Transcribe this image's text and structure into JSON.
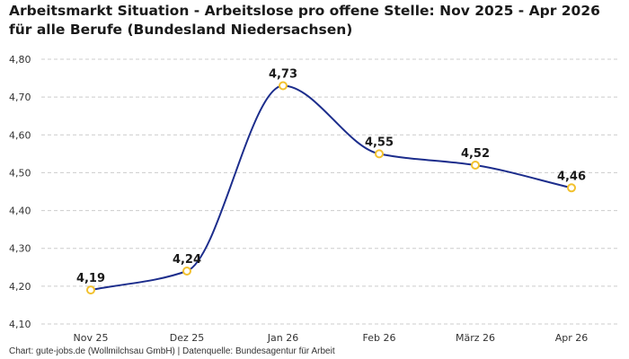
{
  "chart_title": "Arbeitsmarkt Situation - Arbeitslose pro offene Stelle: Nov 2025 - Apr 2026 für alle Berufe (Bundesland Niedersachsen)",
  "source_text": "Chart: gute-jobs.de (Wollmilchsau GmbH) | Datenquelle: Bundesagentur für Arbeit",
  "colors": {
    "line": "#1c2d8c",
    "marker_stroke": "#f2c12e",
    "marker_fill": "#ffffff",
    "grid": "#cccccc"
  },
  "chart_data": {
    "type": "line",
    "title": "Arbeitsmarkt Situation - Arbeitslose pro offene Stelle: Nov 2025 - Apr 2026 für alle Berufe (Bundesland Niedersachsen)",
    "xlabel": "",
    "ylabel": "",
    "categories": [
      "Nov 25",
      "Dez 25",
      "Jan 26",
      "Feb 26",
      "März 26",
      "Apr 26"
    ],
    "values": [
      4.19,
      4.24,
      4.73,
      4.55,
      4.52,
      4.46
    ],
    "data_labels": [
      "4,19",
      "4,24",
      "4,73",
      "4,55",
      "4,52",
      "4,46"
    ],
    "ylim": [
      4.1,
      4.8
    ],
    "yticks": [
      4.1,
      4.2,
      4.3,
      4.4,
      4.5,
      4.6,
      4.7,
      4.8
    ],
    "ytick_labels": [
      "4,10",
      "4,20",
      "4,30",
      "4,40",
      "4,50",
      "4,60",
      "4,70",
      "4,80"
    ],
    "grid": true,
    "grid_style": "dashed-horizontal",
    "smooth": true,
    "legend": "none"
  }
}
